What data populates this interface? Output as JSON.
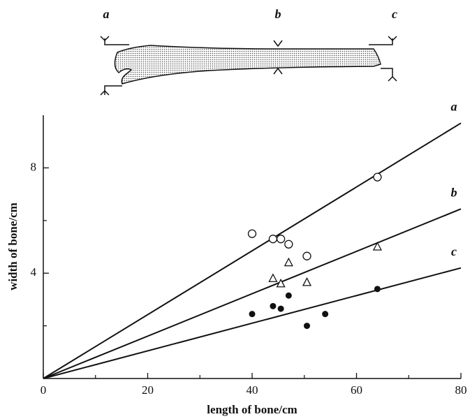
{
  "diagram": {
    "labels": [
      "a",
      "b",
      "c"
    ]
  },
  "chart_data": {
    "type": "scatter",
    "x_label": "length of bone/cm",
    "y_label": "width of bone/cm",
    "xlim": [
      0,
      80
    ],
    "ylim": [
      0,
      10
    ],
    "xticks": [
      0,
      20,
      40,
      60,
      80
    ],
    "xminor": [
      10,
      30,
      50,
      70
    ],
    "yticks": [
      4,
      8
    ],
    "yminor": [
      2,
      6
    ],
    "series": [
      {
        "name": "a",
        "marker": "open-circle",
        "x": [
          40,
          44,
          45.5,
          47,
          50.5,
          64
        ],
        "values": [
          5.5,
          5.3,
          5.3,
          5.1,
          4.65,
          7.65
        ],
        "line": {
          "x": [
            0,
            80
          ],
          "y": [
            0,
            9.7
          ]
        }
      },
      {
        "name": "b",
        "marker": "open-triangle",
        "x": [
          44,
          45.5,
          47,
          50.5,
          64
        ],
        "values": [
          3.8,
          3.6,
          4.4,
          3.65,
          5.0
        ],
        "line": {
          "x": [
            0,
            80
          ],
          "y": [
            0,
            6.44
          ]
        }
      },
      {
        "name": "c",
        "marker": "filled-circle",
        "x": [
          40,
          44,
          45.5,
          47,
          50.5,
          54,
          64
        ],
        "values": [
          2.45,
          2.75,
          2.65,
          3.15,
          2.0,
          2.45,
          3.4
        ],
        "line": {
          "x": [
            0,
            80
          ],
          "y": [
            0,
            4.2
          ]
        }
      }
    ]
  }
}
